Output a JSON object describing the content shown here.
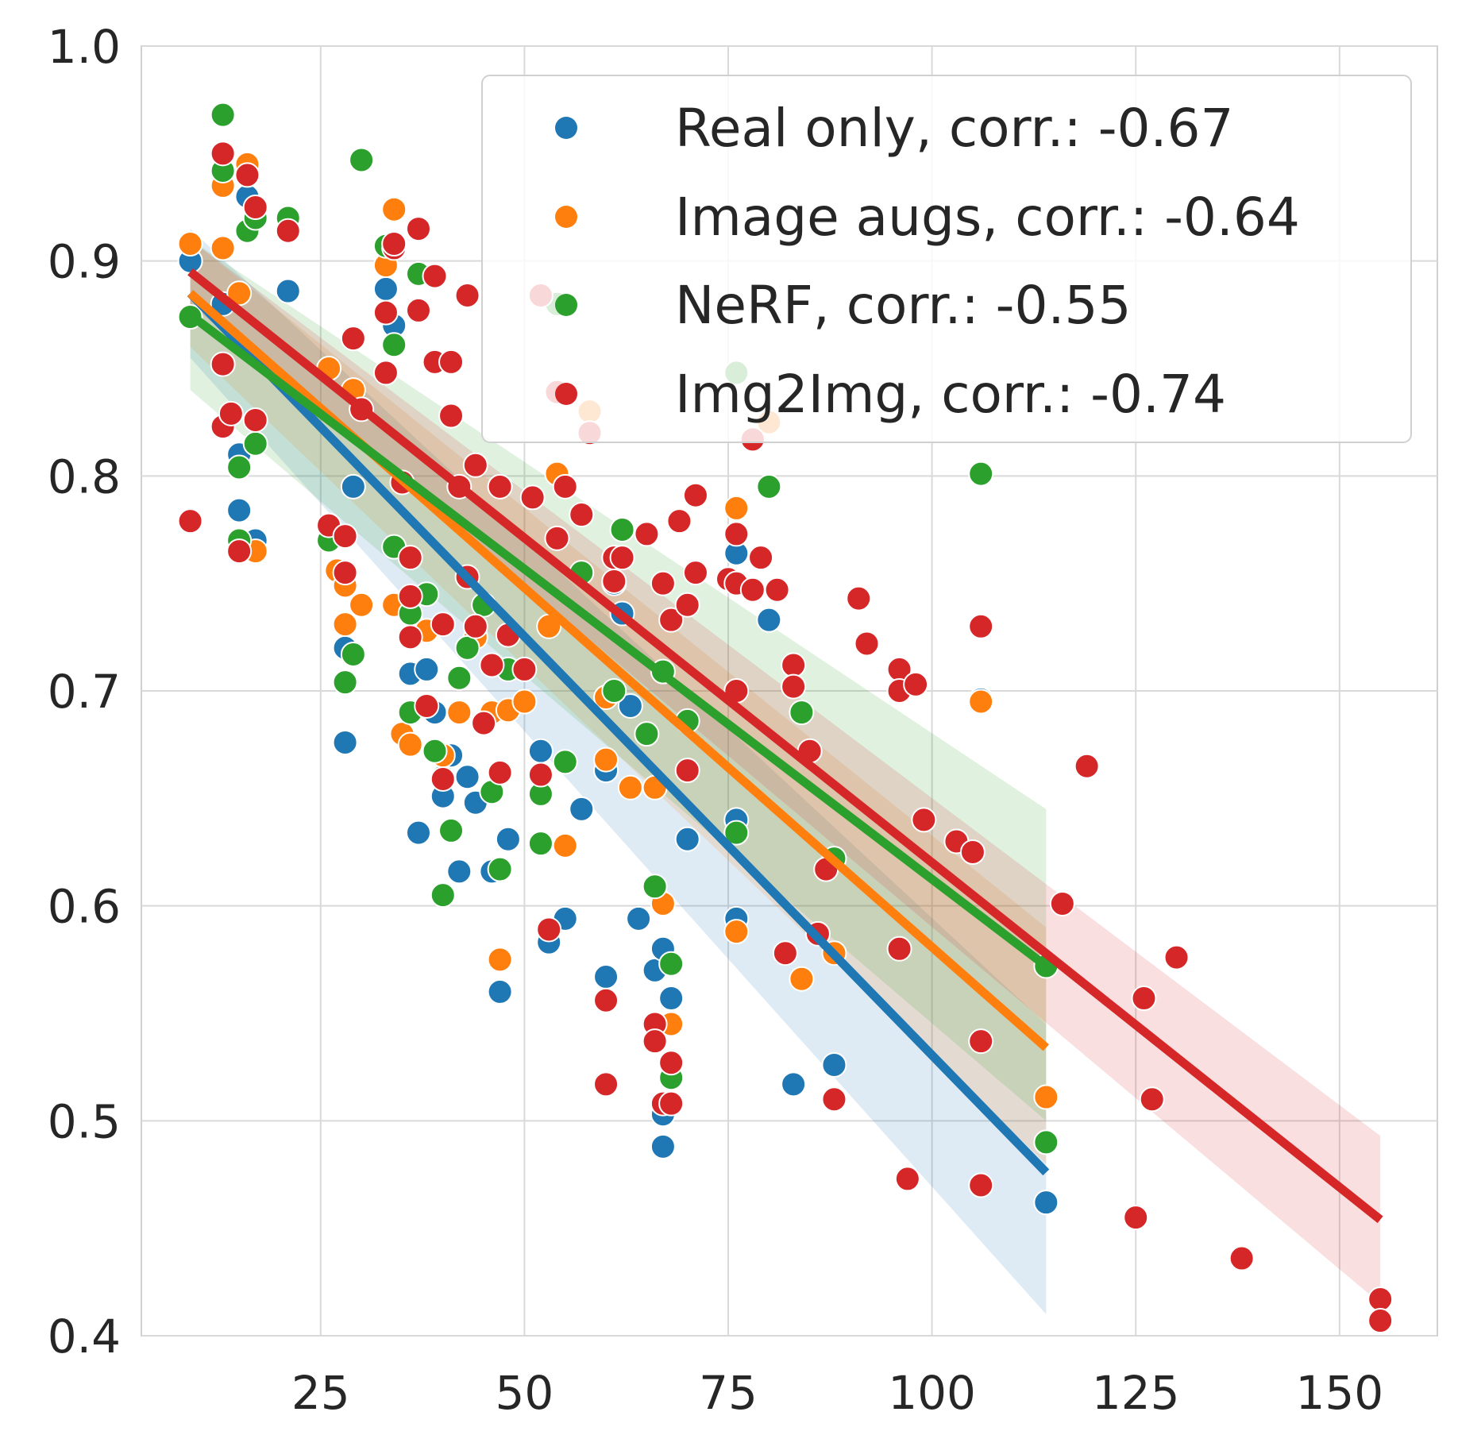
{
  "chart_data": {
    "type": "scatter",
    "title": "",
    "xlabel": "",
    "ylabel": "",
    "xlim": [
      3,
      162
    ],
    "ylim": [
      0.4,
      1.0
    ],
    "x_ticks": [
      25,
      50,
      75,
      100,
      125,
      150
    ],
    "y_ticks": [
      0.4,
      0.5,
      0.6,
      0.7,
      0.8,
      0.9,
      1.0
    ],
    "grid": true,
    "legend_position": "top-right",
    "series": [
      {
        "name": "Real only, corr.: -0.67",
        "color": "#1f77b4",
        "fill_opacity": 0.15,
        "fit": {
          "x": [
            9,
            114
          ],
          "y": [
            0.885,
            0.476
          ]
        },
        "band": {
          "upper": [
            0.915,
            0.545
          ],
          "lower": [
            0.855,
            0.41
          ]
        },
        "points": [
          [
            9,
            0.9
          ],
          [
            13,
            0.88
          ],
          [
            15,
            0.81
          ],
          [
            15,
            0.784
          ],
          [
            16,
            0.93
          ],
          [
            17,
            0.77
          ],
          [
            21,
            0.886
          ],
          [
            28,
            0.72
          ],
          [
            28,
            0.676
          ],
          [
            29,
            0.795
          ],
          [
            33,
            0.887
          ],
          [
            34,
            0.87
          ],
          [
            36,
            0.708
          ],
          [
            37,
            0.634
          ],
          [
            38,
            0.71
          ],
          [
            39,
            0.69
          ],
          [
            40,
            0.66
          ],
          [
            40,
            0.651
          ],
          [
            41,
            0.67
          ],
          [
            42,
            0.616
          ],
          [
            43,
            0.66
          ],
          [
            44,
            0.648
          ],
          [
            46,
            0.616
          ],
          [
            47,
            0.56
          ],
          [
            48,
            0.631
          ],
          [
            52,
            0.672
          ],
          [
            53,
            0.583
          ],
          [
            55,
            0.594
          ],
          [
            57,
            0.645
          ],
          [
            60,
            0.567
          ],
          [
            60,
            0.663
          ],
          [
            61,
            0.75
          ],
          [
            62,
            0.736
          ],
          [
            63,
            0.693
          ],
          [
            64,
            0.594
          ],
          [
            66,
            0.57
          ],
          [
            67,
            0.58
          ],
          [
            67,
            0.503
          ],
          [
            67,
            0.488
          ],
          [
            68,
            0.557
          ],
          [
            70,
            0.631
          ],
          [
            76,
            0.764
          ],
          [
            76,
            0.64
          ],
          [
            76,
            0.594
          ],
          [
            80,
            0.733
          ],
          [
            83,
            0.517
          ],
          [
            88,
            0.526
          ],
          [
            106,
            0.696
          ],
          [
            114,
            0.462
          ]
        ]
      },
      {
        "name": "Image augs, corr.: -0.64",
        "color": "#ff7f0e",
        "fill_opacity": 0.15,
        "fit": {
          "x": [
            9,
            114
          ],
          "y": [
            0.885,
            0.534
          ]
        },
        "band": {
          "upper": [
            0.91,
            0.59
          ],
          "lower": [
            0.86,
            0.48
          ]
        },
        "points": [
          [
            9,
            0.908
          ],
          [
            13,
            0.935
          ],
          [
            13,
            0.906
          ],
          [
            15,
            0.885
          ],
          [
            16,
            0.945
          ],
          [
            17,
            0.765
          ],
          [
            26,
            0.85
          ],
          [
            27,
            0.756
          ],
          [
            28,
            0.749
          ],
          [
            28,
            0.731
          ],
          [
            29,
            0.84
          ],
          [
            30,
            0.74
          ],
          [
            33,
            0.898
          ],
          [
            34,
            0.924
          ],
          [
            34,
            0.74
          ],
          [
            35,
            0.68
          ],
          [
            36,
            0.675
          ],
          [
            38,
            0.728
          ],
          [
            40,
            0.67
          ],
          [
            42,
            0.69
          ],
          [
            44,
            0.725
          ],
          [
            46,
            0.69
          ],
          [
            47,
            0.575
          ],
          [
            48,
            0.691
          ],
          [
            50,
            0.695
          ],
          [
            53,
            0.73
          ],
          [
            54,
            0.801
          ],
          [
            55,
            0.628
          ],
          [
            58,
            0.83
          ],
          [
            60,
            0.668
          ],
          [
            60,
            0.697
          ],
          [
            63,
            0.655
          ],
          [
            66,
            0.655
          ],
          [
            67,
            0.601
          ],
          [
            68,
            0.545
          ],
          [
            76,
            0.785
          ],
          [
            76,
            0.588
          ],
          [
            80,
            0.825
          ],
          [
            84,
            0.566
          ],
          [
            88,
            0.578
          ],
          [
            106,
            0.695
          ],
          [
            114,
            0.511
          ]
        ]
      },
      {
        "name": "NeRF, corr.: -0.55",
        "color": "#2ca02c",
        "fill_opacity": 0.15,
        "fit": {
          "x": [
            9,
            114
          ],
          "y": [
            0.875,
            0.572
          ]
        },
        "band": {
          "upper": [
            0.91,
            0.645
          ],
          "lower": [
            0.84,
            0.5
          ]
        },
        "points": [
          [
            9,
            0.874
          ],
          [
            13,
            0.968
          ],
          [
            13,
            0.942
          ],
          [
            15,
            0.804
          ],
          [
            15,
            0.77
          ],
          [
            16,
            0.914
          ],
          [
            17,
            0.815
          ],
          [
            17,
            0.92
          ],
          [
            21,
            0.92
          ],
          [
            26,
            0.77
          ],
          [
            29,
            0.717
          ],
          [
            30,
            0.947
          ],
          [
            28,
            0.704
          ],
          [
            33,
            0.907
          ],
          [
            34,
            0.861
          ],
          [
            34,
            0.767
          ],
          [
            36,
            0.736
          ],
          [
            36,
            0.69
          ],
          [
            37,
            0.894
          ],
          [
            38,
            0.745
          ],
          [
            39,
            0.672
          ],
          [
            40,
            0.605
          ],
          [
            41,
            0.635
          ],
          [
            42,
            0.706
          ],
          [
            43,
            0.72
          ],
          [
            45,
            0.74
          ],
          [
            46,
            0.653
          ],
          [
            47,
            0.617
          ],
          [
            48,
            0.71
          ],
          [
            52,
            0.652
          ],
          [
            52,
            0.629
          ],
          [
            54,
            0.88
          ],
          [
            55,
            0.667
          ],
          [
            57,
            0.755
          ],
          [
            61,
            0.7
          ],
          [
            62,
            0.775
          ],
          [
            65,
            0.68
          ],
          [
            66,
            0.609
          ],
          [
            67,
            0.709
          ],
          [
            68,
            0.573
          ],
          [
            68,
            0.52
          ],
          [
            70,
            0.686
          ],
          [
            76,
            0.848
          ],
          [
            76,
            0.634
          ],
          [
            80,
            0.795
          ],
          [
            84,
            0.69
          ],
          [
            88,
            0.622
          ],
          [
            106,
            0.801
          ],
          [
            114,
            0.49
          ],
          [
            114,
            0.572
          ]
        ]
      },
      {
        "name": "Img2Img, corr.: -0.74",
        "color": "#d62728",
        "fill_opacity": 0.15,
        "fit": {
          "x": [
            9,
            155
          ],
          "y": [
            0.895,
            0.454
          ]
        },
        "band": {
          "upper": [
            0.91,
            0.493
          ],
          "lower": [
            0.88,
            0.415
          ]
        },
        "points": [
          [
            9,
            0.779
          ],
          [
            13,
            0.95
          ],
          [
            13,
            0.852
          ],
          [
            13,
            0.823
          ],
          [
            14,
            0.829
          ],
          [
            15,
            0.765
          ],
          [
            16,
            0.94
          ],
          [
            17,
            0.925
          ],
          [
            17,
            0.826
          ],
          [
            21,
            0.914
          ],
          [
            26,
            0.777
          ],
          [
            28,
            0.755
          ],
          [
            28,
            0.772
          ],
          [
            29,
            0.864
          ],
          [
            30,
            0.831
          ],
          [
            33,
            0.876
          ],
          [
            33,
            0.848
          ],
          [
            34,
            0.906
          ],
          [
            34,
            0.908
          ],
          [
            35,
            0.797
          ],
          [
            36,
            0.725
          ],
          [
            36,
            0.762
          ],
          [
            36,
            0.744
          ],
          [
            37,
            0.915
          ],
          [
            37,
            0.877
          ],
          [
            38,
            0.693
          ],
          [
            39,
            0.893
          ],
          [
            39,
            0.853
          ],
          [
            40,
            0.659
          ],
          [
            40,
            0.731
          ],
          [
            41,
            0.853
          ],
          [
            41,
            0.828
          ],
          [
            42,
            0.795
          ],
          [
            43,
            0.884
          ],
          [
            43,
            0.753
          ],
          [
            44,
            0.73
          ],
          [
            44,
            0.805
          ],
          [
            45,
            0.685
          ],
          [
            46,
            0.712
          ],
          [
            47,
            0.662
          ],
          [
            47,
            0.795
          ],
          [
            48,
            0.726
          ],
          [
            50,
            0.71
          ],
          [
            51,
            0.79
          ],
          [
            52,
            0.884
          ],
          [
            52,
            0.661
          ],
          [
            53,
            0.589
          ],
          [
            54,
            0.839
          ],
          [
            54,
            0.771
          ],
          [
            55,
            0.795
          ],
          [
            57,
            0.782
          ],
          [
            58,
            0.82
          ],
          [
            60,
            0.517
          ],
          [
            60,
            0.556
          ],
          [
            61,
            0.762
          ],
          [
            61,
            0.751
          ],
          [
            62,
            0.762
          ],
          [
            65,
            0.773
          ],
          [
            66,
            0.545
          ],
          [
            66,
            0.537
          ],
          [
            67,
            0.508
          ],
          [
            67,
            0.75
          ],
          [
            68,
            0.733
          ],
          [
            68,
            0.527
          ],
          [
            68,
            0.508
          ],
          [
            69,
            0.779
          ],
          [
            70,
            0.74
          ],
          [
            70,
            0.663
          ],
          [
            71,
            0.791
          ],
          [
            71,
            0.755
          ],
          [
            75,
            0.752
          ],
          [
            76,
            0.773
          ],
          [
            76,
            0.75
          ],
          [
            76,
            0.7
          ],
          [
            78,
            0.747
          ],
          [
            78,
            0.817
          ],
          [
            79,
            0.762
          ],
          [
            81,
            0.747
          ],
          [
            82,
            0.578
          ],
          [
            83,
            0.712
          ],
          [
            83,
            0.702
          ],
          [
            85,
            0.672
          ],
          [
            86,
            0.587
          ],
          [
            87,
            0.617
          ],
          [
            88,
            0.51
          ],
          [
            91,
            0.743
          ],
          [
            92,
            0.722
          ],
          [
            96,
            0.71
          ],
          [
            96,
            0.7
          ],
          [
            96,
            0.58
          ],
          [
            97,
            0.473
          ],
          [
            98,
            0.703
          ],
          [
            99,
            0.64
          ],
          [
            103,
            0.63
          ],
          [
            105,
            0.625
          ],
          [
            106,
            0.537
          ],
          [
            106,
            0.73
          ],
          [
            106,
            0.47
          ],
          [
            116,
            0.601
          ],
          [
            119,
            0.665
          ],
          [
            125,
            0.455
          ],
          [
            126,
            0.557
          ],
          [
            127,
            0.51
          ],
          [
            130,
            0.576
          ],
          [
            138,
            0.436
          ],
          [
            155,
            0.417
          ],
          [
            155,
            0.407
          ]
        ]
      }
    ]
  }
}
